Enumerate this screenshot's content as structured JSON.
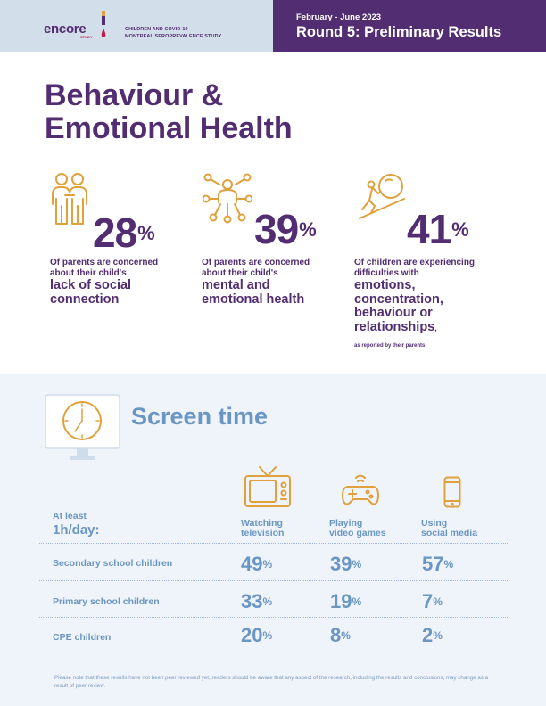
{
  "header": {
    "logo_text": "encore",
    "logo_sub": "STUDY",
    "subtitle_line1": "CHILDREN AND COVID-19",
    "subtitle_line2": "MONTREAL SEROPREVALENCE STUDY",
    "date_range": "February - June 2023",
    "round_title": "Round 5: Preliminary Results"
  },
  "title": {
    "line1": "Behaviour &",
    "line2": "Emotional Health"
  },
  "stats": [
    {
      "value": "28",
      "symbol": "%",
      "line1": "Of parents are concerned",
      "line2": "about their child's",
      "big1": "lack of social",
      "big2": "connection",
      "icon": "people-icon"
    },
    {
      "value": "39",
      "symbol": "%",
      "line1": "Of parents are concerned",
      "line2": "about their child's",
      "big1": "mental and",
      "big2": "emotional health",
      "icon": "network-person-icon"
    },
    {
      "value": "41",
      "symbol": "%",
      "line1": "Of children are experiencing",
      "line2": "difficulties with",
      "big1": "emotions,",
      "big2": "concentration,",
      "big3": "behaviour or",
      "big4": "relationships",
      "tail": ",",
      "note": "as reported by their parents",
      "icon": "pushing-boulder-icon"
    }
  ],
  "screen_time": {
    "title": "Screen time",
    "at_least": "At least",
    "per_day": "1h/day:",
    "columns": [
      {
        "line1": "Watching",
        "line2": "television",
        "icon": "television-icon"
      },
      {
        "line1": "Playing",
        "line2": "video games",
        "icon": "gamepad-icon"
      },
      {
        "line1": "Using",
        "line2": "social media",
        "icon": "smartphone-icon"
      }
    ],
    "rows": [
      {
        "label": "Secondary school children",
        "values": [
          "49",
          "39",
          "57"
        ]
      },
      {
        "label": "Primary school children",
        "values": [
          "33",
          "19",
          "7"
        ]
      },
      {
        "label": "CPE children",
        "values": [
          "20",
          "8",
          "2"
        ]
      }
    ],
    "symbol": "%"
  },
  "footnote": "Please note that these results have not been peer reviewed yet, readers should be aware that any aspect of the research, including the results and conclusions, may change as a result of peer review.",
  "colors": {
    "purple": "#522d72",
    "blue": "#6a96c4",
    "orange": "#e0a03c",
    "red": "#c4194a"
  }
}
